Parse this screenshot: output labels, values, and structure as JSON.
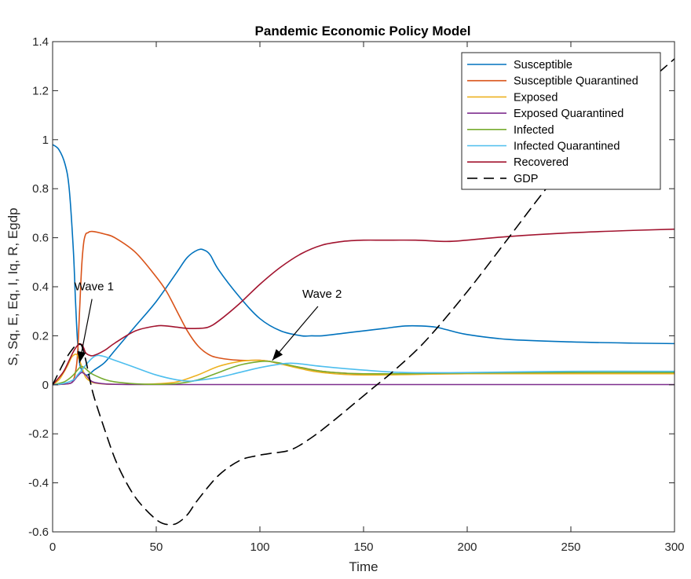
{
  "chart_data": {
    "type": "line",
    "title": "Pandemic Economic Policy Model",
    "xlabel": "Time",
    "ylabel": "S, Sq, E, Eq, I, Iq, R, Egdp",
    "xlim": [
      0,
      300
    ],
    "ylim": [
      -0.6,
      1.4
    ],
    "xticks": [
      0,
      50,
      100,
      150,
      200,
      250,
      300
    ],
    "yticks": [
      -0.6,
      -0.4,
      -0.2,
      0,
      0.2,
      0.4,
      0.6,
      0.8,
      1,
      1.2,
      1.4
    ],
    "xtick_labels": [
      "0",
      "50",
      "100",
      "150",
      "200",
      "250",
      "300"
    ],
    "ytick_labels": [
      "-0.6",
      "-0.4",
      "-0.2",
      "0",
      "0.2",
      "0.4",
      "0.6",
      "0.8",
      "1",
      "1.2",
      "1.4"
    ],
    "grid": false,
    "legend_position": "top-right",
    "series": [
      {
        "name": "Susceptible",
        "color": "#0072BD",
        "dash": "solid",
        "x": [
          0,
          3,
          6,
          8,
          10,
          11,
          12,
          13,
          14,
          15,
          16,
          18,
          20,
          25,
          30,
          40,
          50,
          60,
          65,
          70,
          73,
          76,
          80,
          90,
          100,
          110,
          120,
          125,
          130,
          140,
          150,
          160,
          170,
          178,
          185,
          190,
          200,
          220,
          250,
          280,
          300
        ],
        "y": [
          0.98,
          0.96,
          0.9,
          0.8,
          0.55,
          0.35,
          0.18,
          0.09,
          0.06,
          0.05,
          0.04,
          0.045,
          0.06,
          0.09,
          0.14,
          0.24,
          0.34,
          0.46,
          0.52,
          0.55,
          0.55,
          0.53,
          0.47,
          0.36,
          0.27,
          0.22,
          0.2,
          0.2,
          0.2,
          0.21,
          0.22,
          0.23,
          0.24,
          0.24,
          0.235,
          0.225,
          0.205,
          0.185,
          0.175,
          0.17,
          0.168
        ]
      },
      {
        "name": "Susceptible Quarantined",
        "color": "#D95319",
        "dash": "solid",
        "x": [
          0,
          8,
          10,
          11,
          12,
          13,
          14,
          15,
          16,
          17,
          18,
          20,
          25,
          30,
          40,
          50,
          55,
          60,
          65,
          70,
          75,
          80,
          90,
          100,
          105,
          110,
          120,
          130,
          140,
          150,
          200,
          250,
          300
        ],
        "y": [
          0,
          0.005,
          0.02,
          0.05,
          0.12,
          0.3,
          0.48,
          0.58,
          0.615,
          0.62,
          0.625,
          0.625,
          0.615,
          0.6,
          0.54,
          0.44,
          0.38,
          0.3,
          0.22,
          0.16,
          0.125,
          0.11,
          0.1,
          0.1,
          0.095,
          0.085,
          0.07,
          0.055,
          0.048,
          0.045,
          0.045,
          0.045,
          0.045
        ]
      },
      {
        "name": "Exposed",
        "color": "#EDB120",
        "dash": "solid",
        "x": [
          0,
          3,
          5,
          7,
          9,
          10,
          11,
          12,
          13,
          14,
          15,
          16,
          18,
          20,
          25,
          30,
          40,
          50,
          60,
          70,
          80,
          90,
          98,
          105,
          110,
          120,
          130,
          150,
          200,
          250,
          300
        ],
        "y": [
          0,
          0.02,
          0.045,
          0.075,
          0.11,
          0.12,
          0.125,
          0.12,
          0.1,
          0.075,
          0.05,
          0.03,
          0.015,
          0.008,
          0.003,
          0.002,
          0.002,
          0.004,
          0.012,
          0.04,
          0.075,
          0.095,
          0.1,
          0.095,
          0.085,
          0.065,
          0.05,
          0.04,
          0.045,
          0.045,
          0.045
        ]
      },
      {
        "name": "Exposed Quarantined",
        "color": "#7E2F8E",
        "dash": "solid",
        "x": [
          0,
          8,
          10,
          12,
          14,
          16,
          18,
          20,
          25,
          30,
          40,
          50,
          100,
          200,
          300
        ],
        "y": [
          0,
          0.005,
          0.015,
          0.035,
          0.05,
          0.04,
          0.02,
          0.01,
          0.004,
          0.002,
          0.001,
          0.001,
          0.001,
          0.001,
          0.001
        ]
      },
      {
        "name": "Infected",
        "color": "#77AC30",
        "dash": "solid",
        "x": [
          0,
          5,
          8,
          10,
          12,
          13,
          14,
          15,
          16,
          18,
          20,
          25,
          30,
          40,
          50,
          60,
          70,
          80,
          90,
          100,
          105,
          110,
          120,
          130,
          150,
          200,
          250,
          300
        ],
        "y": [
          0,
          0.01,
          0.025,
          0.04,
          0.06,
          0.07,
          0.075,
          0.072,
          0.065,
          0.05,
          0.04,
          0.022,
          0.012,
          0.004,
          0.002,
          0.005,
          0.02,
          0.05,
          0.08,
          0.095,
          0.095,
          0.088,
          0.07,
          0.055,
          0.045,
          0.048,
          0.05,
          0.05
        ]
      },
      {
        "name": "Infected Quarantined",
        "color": "#4DBEEE",
        "dash": "solid",
        "x": [
          0,
          5,
          10,
          12,
          15,
          18,
          20,
          22,
          25,
          30,
          40,
          50,
          60,
          66,
          70,
          80,
          90,
          100,
          110,
          115,
          120,
          130,
          150,
          170,
          200,
          250,
          300
        ],
        "y": [
          0,
          0.005,
          0.02,
          0.04,
          0.07,
          0.1,
          0.115,
          0.12,
          0.115,
          0.1,
          0.07,
          0.04,
          0.02,
          0.015,
          0.018,
          0.03,
          0.05,
          0.07,
          0.085,
          0.088,
          0.085,
          0.075,
          0.06,
          0.05,
          0.05,
          0.055,
          0.055
        ]
      },
      {
        "name": "Recovered",
        "color": "#A2142F",
        "dash": "solid",
        "x": [
          0,
          5,
          8,
          10,
          12,
          14,
          15,
          16,
          18,
          20,
          25,
          30,
          40,
          50,
          55,
          60,
          65,
          70,
          75,
          80,
          90,
          100,
          110,
          120,
          130,
          140,
          150,
          160,
          175,
          190,
          200,
          220,
          250,
          280,
          300
        ],
        "y": [
          0,
          0.05,
          0.1,
          0.135,
          0.16,
          0.165,
          0.15,
          0.13,
          0.12,
          0.12,
          0.14,
          0.17,
          0.22,
          0.24,
          0.24,
          0.235,
          0.23,
          0.23,
          0.235,
          0.26,
          0.33,
          0.41,
          0.48,
          0.535,
          0.57,
          0.585,
          0.59,
          0.59,
          0.59,
          0.585,
          0.59,
          0.605,
          0.62,
          0.63,
          0.635
        ]
      },
      {
        "name": "GDP",
        "color": "#000000",
        "dash": "dashed",
        "x": [
          0,
          6,
          10,
          12,
          14,
          16,
          18,
          20,
          25,
          30,
          35,
          40,
          45,
          50,
          53,
          56,
          60,
          65,
          70,
          80,
          90,
          98,
          105,
          115,
          125,
          135,
          145,
          155,
          165,
          180,
          200,
          220,
          240,
          260,
          280,
          300
        ],
        "y": [
          0,
          0.1,
          0.15,
          0.165,
          0.16,
          0.1,
          0.02,
          -0.05,
          -0.18,
          -0.3,
          -0.39,
          -0.46,
          -0.51,
          -0.55,
          -0.565,
          -0.57,
          -0.565,
          -0.53,
          -0.47,
          -0.37,
          -0.31,
          -0.29,
          -0.28,
          -0.265,
          -0.215,
          -0.15,
          -0.08,
          -0.01,
          0.06,
          0.18,
          0.38,
          0.6,
          0.82,
          1.01,
          1.18,
          1.33
        ]
      }
    ],
    "annotations": [
      {
        "text": "Wave 1",
        "text_x": 20,
        "text_y": 0.385,
        "arrow_from": [
          19,
          0.35
        ],
        "arrow_to": [
          13,
          0.09
        ]
      },
      {
        "text": "Wave 2",
        "text_x": 130,
        "text_y": 0.355,
        "arrow_from": [
          128,
          0.32
        ],
        "arrow_to": [
          106,
          0.1
        ]
      }
    ]
  }
}
